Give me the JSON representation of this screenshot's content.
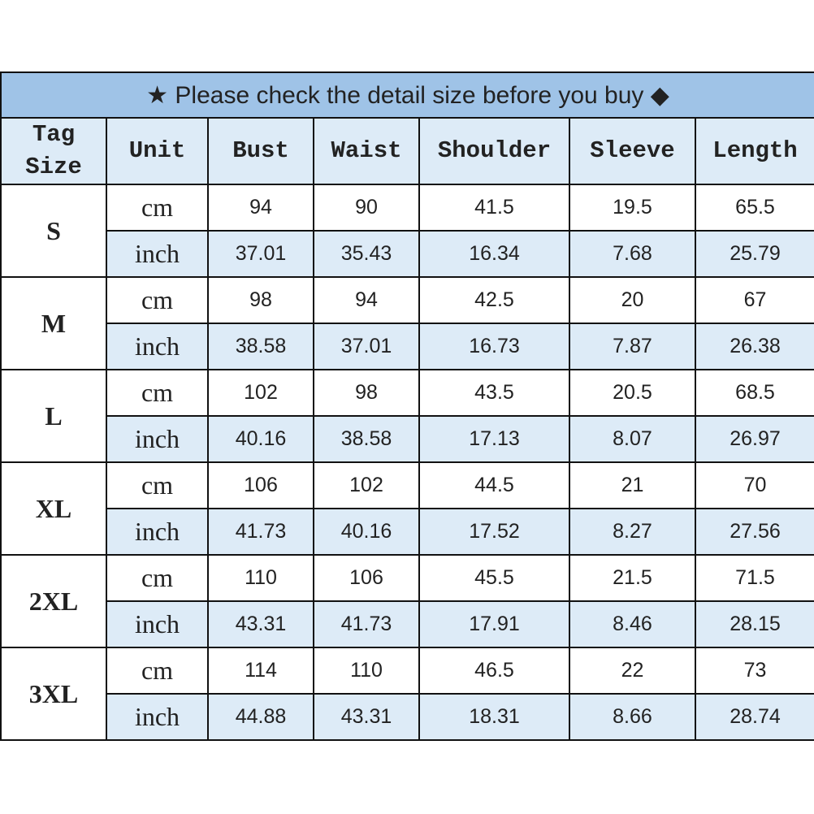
{
  "title": "★ Please check the detail size before you buy ◆",
  "headers": [
    "Tag Size",
    "Unit",
    "Bust",
    "Waist",
    "Shoulder",
    "Sleeve",
    "Length"
  ],
  "colors": {
    "title_bg": "#9fc3e7",
    "header_bg": "#ddebf7",
    "inch_row_bg": "#ddebf7",
    "border": "#111111"
  },
  "rows": [
    {
      "size": "S",
      "cm": [
        "94",
        "90",
        "41.5",
        "19.5",
        "65.5"
      ],
      "inch": [
        "37.01",
        "35.43",
        "16.34",
        "7.68",
        "25.79"
      ]
    },
    {
      "size": "M",
      "cm": [
        "98",
        "94",
        "42.5",
        "20",
        "67"
      ],
      "inch": [
        "38.58",
        "37.01",
        "16.73",
        "7.87",
        "26.38"
      ]
    },
    {
      "size": "L",
      "cm": [
        "102",
        "98",
        "43.5",
        "20.5",
        "68.5"
      ],
      "inch": [
        "40.16",
        "38.58",
        "17.13",
        "8.07",
        "26.97"
      ]
    },
    {
      "size": "XL",
      "cm": [
        "106",
        "102",
        "44.5",
        "21",
        "70"
      ],
      "inch": [
        "41.73",
        "40.16",
        "17.52",
        "8.27",
        "27.56"
      ]
    },
    {
      "size": "2XL",
      "cm": [
        "110",
        "106",
        "45.5",
        "21.5",
        "71.5"
      ],
      "inch": [
        "43.31",
        "41.73",
        "17.91",
        "8.46",
        "28.15"
      ]
    },
    {
      "size": "3XL",
      "cm": [
        "114",
        "110",
        "46.5",
        "22",
        "73"
      ],
      "inch": [
        "44.88",
        "43.31",
        "18.31",
        "8.66",
        "28.74"
      ]
    }
  ],
  "units": {
    "cm": "cm",
    "inch": "inch"
  }
}
